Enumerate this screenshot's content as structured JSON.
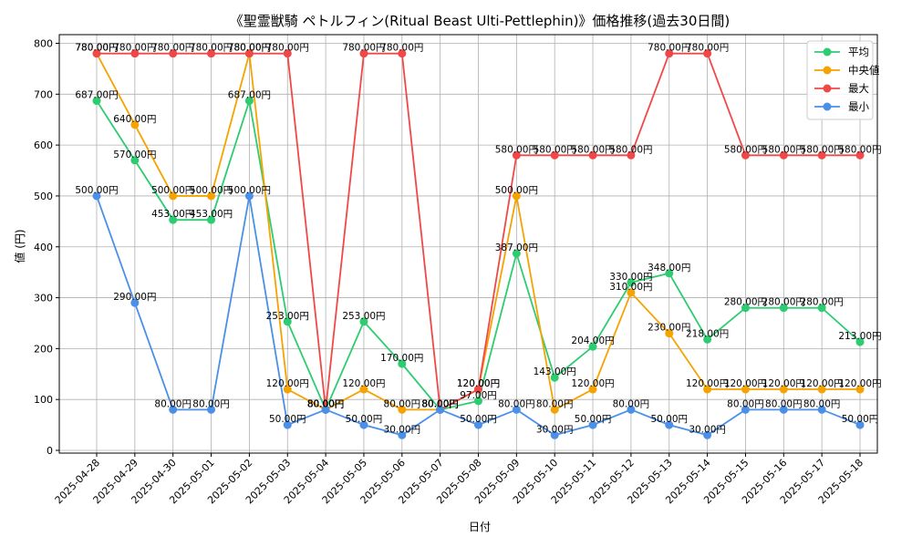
{
  "chart_data": {
    "type": "line",
    "title": "《聖霊獣騎 ペトルフィン(Ritual Beast Ulti-Pettlephin)》価格推移(過去30日間)",
    "xlabel": "日付",
    "ylabel": "値 (円)",
    "ylim": [
      0,
      800
    ],
    "yticks": [
      0,
      100,
      200,
      300,
      400,
      500,
      600,
      700,
      800
    ],
    "grid": true,
    "legend_position": "top-right",
    "value_suffix": "円",
    "categories": [
      "2025-04-28",
      "2025-04-29",
      "2025-04-30",
      "2025-05-01",
      "2025-05-02",
      "2025-05-03",
      "2025-05-04",
      "2025-05-05",
      "2025-05-06",
      "2025-05-07",
      "2025-05-08",
      "2025-05-09",
      "2025-05-10",
      "2025-05-11",
      "2025-05-12",
      "2025-05-13",
      "2025-05-14",
      "2025-05-15",
      "2025-05-16",
      "2025-05-17",
      "2025-05-18"
    ],
    "series": [
      {
        "name": "平均",
        "color": "#2ecc71",
        "values": [
          687,
          570,
          453,
          453,
          687,
          253,
          80,
          253,
          170,
          80,
          97,
          387,
          143,
          204,
          330,
          348,
          218,
          280,
          280,
          280,
          213
        ]
      },
      {
        "name": "中央値",
        "color": "#f5a300",
        "values": [
          780,
          640,
          500,
          500,
          780,
          120,
          80,
          120,
          80,
          80,
          120,
          500,
          80,
          120,
          310,
          230,
          120,
          120,
          120,
          120,
          120
        ]
      },
      {
        "name": "最大",
        "color": "#f04848",
        "values": [
          780,
          780,
          780,
          780,
          780,
          780,
          80,
          780,
          780,
          80,
          120,
          580,
          580,
          580,
          580,
          780,
          780,
          580,
          580,
          580,
          580
        ]
      },
      {
        "name": "最小",
        "color": "#4a90e8",
        "values": [
          500,
          290,
          80,
          80,
          500,
          50,
          80,
          50,
          30,
          80,
          50,
          80,
          30,
          50,
          80,
          50,
          30,
          80,
          80,
          80,
          50
        ]
      }
    ]
  }
}
